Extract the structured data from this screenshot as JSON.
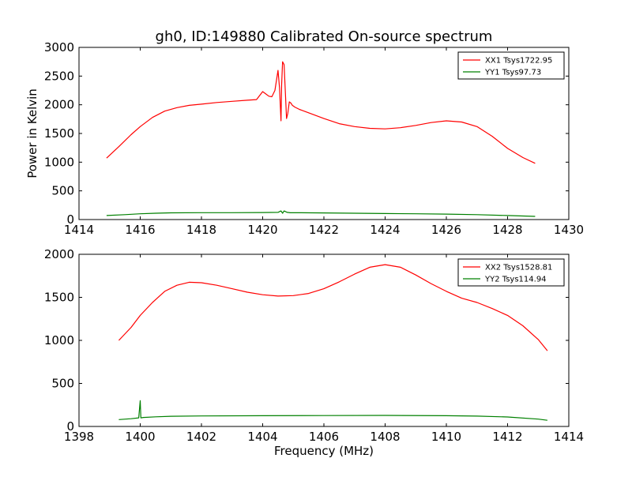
{
  "chart_data": [
    {
      "type": "line",
      "title": "gh0, ID:149880 Calibrated On-source spectrum",
      "xlabel": "",
      "ylabel": "Power in Kelvin",
      "xlim": [
        1414,
        1430
      ],
      "ylim": [
        0,
        3000
      ],
      "xticks": [
        1414,
        1416,
        1418,
        1420,
        1422,
        1424,
        1426,
        1428,
        1430
      ],
      "yticks": [
        0,
        500,
        1000,
        1500,
        2000,
        2500,
        3000
      ],
      "legend_position": "top-right",
      "series": [
        {
          "name": "XX1 Tsys1722.95",
          "color": "#ff0000",
          "x": [
            1414.9,
            1415.3,
            1415.7,
            1416.0,
            1416.4,
            1416.8,
            1417.2,
            1417.6,
            1418.0,
            1418.5,
            1419.0,
            1419.5,
            1419.8,
            1420.0,
            1420.1,
            1420.2,
            1420.3,
            1420.4,
            1420.5,
            1420.55,
            1420.6,
            1420.62,
            1420.65,
            1420.7,
            1420.75,
            1420.78,
            1420.82,
            1420.87,
            1420.92,
            1420.97,
            1421.05,
            1421.2,
            1421.5,
            1422.0,
            1422.5,
            1423.0,
            1423.5,
            1424.0,
            1424.5,
            1425.0,
            1425.5,
            1426.0,
            1426.5,
            1427.0,
            1427.5,
            1428.0,
            1428.5,
            1428.9
          ],
          "values": [
            1070,
            1270,
            1480,
            1620,
            1780,
            1890,
            1950,
            1990,
            2010,
            2040,
            2060,
            2080,
            2090,
            2230,
            2190,
            2150,
            2140,
            2250,
            2600,
            2300,
            1720,
            2350,
            2750,
            2700,
            2100,
            1760,
            1850,
            2050,
            2030,
            1990,
            1960,
            1920,
            1860,
            1760,
            1670,
            1620,
            1590,
            1580,
            1600,
            1640,
            1690,
            1720,
            1700,
            1620,
            1450,
            1240,
            1080,
            980
          ]
        },
        {
          "name": "YY1 Tsys97.73",
          "color": "#008000",
          "x": [
            1414.9,
            1415.5,
            1416.0,
            1416.5,
            1417.0,
            1418.0,
            1419.0,
            1420.0,
            1420.5,
            1420.6,
            1420.65,
            1420.7,
            1420.8,
            1420.9,
            1421.0,
            1422.0,
            1423.0,
            1424.0,
            1425.0,
            1426.0,
            1427.0,
            1428.0,
            1428.9
          ],
          "values": [
            70,
            85,
            100,
            110,
            117,
            120,
            120,
            122,
            125,
            150,
            110,
            150,
            125,
            118,
            120,
            115,
            110,
            105,
            100,
            95,
            85,
            70,
            55
          ]
        }
      ]
    },
    {
      "type": "line",
      "title": "",
      "xlabel": "Frequency (MHz)",
      "ylabel": "",
      "xlim": [
        1398,
        1414
      ],
      "ylim": [
        0,
        2000
      ],
      "xticks": [
        1398,
        1400,
        1402,
        1404,
        1406,
        1408,
        1410,
        1412,
        1414
      ],
      "yticks": [
        0,
        500,
        1000,
        1500,
        2000
      ],
      "legend_position": "top-right",
      "series": [
        {
          "name": "XX2 Tsys1528.81",
          "color": "#ff0000",
          "x": [
            1399.3,
            1399.7,
            1400.0,
            1400.4,
            1400.8,
            1401.2,
            1401.6,
            1402.0,
            1402.5,
            1403.0,
            1403.5,
            1404.0,
            1404.5,
            1405.0,
            1405.5,
            1406.0,
            1406.5,
            1407.0,
            1407.5,
            1408.0,
            1408.5,
            1409.0,
            1409.5,
            1410.0,
            1410.5,
            1411.0,
            1411.5,
            1412.0,
            1412.5,
            1413.0,
            1413.3
          ],
          "values": [
            1000,
            1150,
            1290,
            1440,
            1570,
            1640,
            1675,
            1670,
            1640,
            1600,
            1560,
            1530,
            1515,
            1520,
            1545,
            1600,
            1680,
            1770,
            1850,
            1880,
            1850,
            1760,
            1660,
            1570,
            1490,
            1440,
            1370,
            1290,
            1170,
            1010,
            880
          ]
        },
        {
          "name": "YY2 Tsys114.94",
          "color": "#008000",
          "x": [
            1399.3,
            1399.7,
            1399.95,
            1400.0,
            1400.02,
            1400.1,
            1400.5,
            1401.0,
            1402.0,
            1404.0,
            1406.0,
            1408.0,
            1410.0,
            1411.0,
            1412.0,
            1413.0,
            1413.3
          ],
          "values": [
            80,
            90,
            100,
            300,
            100,
            105,
            112,
            118,
            122,
            125,
            127,
            128,
            125,
            120,
            110,
            85,
            72
          ]
        }
      ]
    }
  ]
}
